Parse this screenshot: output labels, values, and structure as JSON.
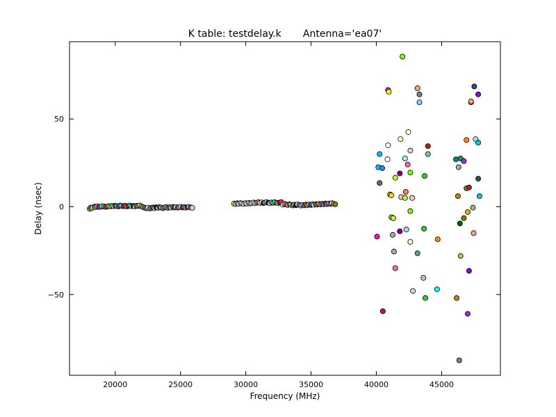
{
  "chart_data": {
    "type": "scatter",
    "title": "K table: testdelay.k       Antenna='ea07'",
    "xlabel": "Frequency (MHz)",
    "ylabel": "Delay (nsec)",
    "xlim": [
      16500,
      49500
    ],
    "ylim": [
      -96,
      94
    ],
    "xticks": [
      {
        "value": 20000,
        "label": "20000"
      },
      {
        "value": 25000,
        "label": "25000"
      },
      {
        "value": 30000,
        "label": "30000"
      },
      {
        "value": 35000,
        "label": "35000"
      },
      {
        "value": 40000,
        "label": "40000"
      },
      {
        "value": 45000,
        "label": "45000"
      }
    ],
    "yticks": [
      {
        "value": 50,
        "label": "50"
      },
      {
        "value": 0,
        "label": "0"
      },
      {
        "value": -50,
        "label": "−50"
      }
    ],
    "grid": false,
    "points": [
      {
        "x": 18050,
        "y": -1.2,
        "color": "#87cefa"
      },
      {
        "x": 18120,
        "y": -0.5,
        "color": "#ff69b4"
      },
      {
        "x": 18200,
        "y": -0.8,
        "color": "#7cfc00"
      },
      {
        "x": 18300,
        "y": -0.3,
        "color": "#ffffe0"
      },
      {
        "x": 18420,
        "y": 0.1,
        "color": "#00bfff"
      },
      {
        "x": 18500,
        "y": -0.2,
        "color": "#9acd32"
      },
      {
        "x": 18620,
        "y": 0.2,
        "color": "#ffa07a"
      },
      {
        "x": 18750,
        "y": -0.1,
        "color": "#ff00ff"
      },
      {
        "x": 18870,
        "y": 0.0,
        "color": "#4682b4"
      },
      {
        "x": 19000,
        "y": 0.3,
        "color": "#ffffff"
      },
      {
        "x": 19120,
        "y": 0.2,
        "color": "#00fa9a"
      },
      {
        "x": 19250,
        "y": -0.1,
        "color": "#ff4500"
      },
      {
        "x": 19380,
        "y": 0.1,
        "color": "#6a5acd"
      },
      {
        "x": 19500,
        "y": 0.4,
        "color": "#c0c0c0"
      },
      {
        "x": 19620,
        "y": 0.2,
        "color": "#ffd700"
      },
      {
        "x": 19750,
        "y": 0.5,
        "color": "#40e0d0"
      },
      {
        "x": 19870,
        "y": 0.3,
        "color": "#adff2f"
      },
      {
        "x": 20000,
        "y": 0.6,
        "color": "#8b4513"
      },
      {
        "x": 20120,
        "y": 0.4,
        "color": "#00ffff"
      },
      {
        "x": 20250,
        "y": 0.2,
        "color": "#ff1493"
      },
      {
        "x": 20380,
        "y": 0.7,
        "color": "#1e90ff"
      },
      {
        "x": 20500,
        "y": 0.5,
        "color": "#ffff00"
      },
      {
        "x": 20620,
        "y": 0.3,
        "color": "#8a2be2"
      },
      {
        "x": 20750,
        "y": 0.6,
        "color": "#2e8b57"
      },
      {
        "x": 20870,
        "y": 0.2,
        "color": "#ff8c00"
      },
      {
        "x": 21000,
        "y": 0.4,
        "color": "#dc143c"
      },
      {
        "x": 21120,
        "y": 0.7,
        "color": "#00ced1"
      },
      {
        "x": 21250,
        "y": 0.3,
        "color": "#98fb98"
      },
      {
        "x": 21380,
        "y": 0.5,
        "color": "#191970"
      },
      {
        "x": 21500,
        "y": 0.2,
        "color": "#f0e68c"
      },
      {
        "x": 21620,
        "y": 0.6,
        "color": "#808080"
      },
      {
        "x": 21750,
        "y": 0.4,
        "color": "#ff6347"
      },
      {
        "x": 21870,
        "y": 0.8,
        "color": "#afeeee"
      },
      {
        "x": 22000,
        "y": 0.3,
        "color": "#32cd32"
      },
      {
        "x": 22150,
        "y": -0.3,
        "color": "#da70d6"
      },
      {
        "x": 22280,
        "y": -0.6,
        "color": "#b8860b"
      },
      {
        "x": 22400,
        "y": -0.9,
        "color": "#5f9ea0"
      },
      {
        "x": 22520,
        "y": -0.5,
        "color": "#f5f5f5"
      },
      {
        "x": 22650,
        "y": -1.0,
        "color": "#ff7f50"
      },
      {
        "x": 22780,
        "y": -0.7,
        "color": "#6495ed"
      },
      {
        "x": 22900,
        "y": -0.4,
        "color": "#228b22"
      },
      {
        "x": 23020,
        "y": -0.8,
        "color": "#ffb6c1"
      },
      {
        "x": 23150,
        "y": -0.3,
        "color": "#000080"
      },
      {
        "x": 23280,
        "y": -0.6,
        "color": "#eee8aa"
      },
      {
        "x": 23400,
        "y": -0.2,
        "color": "#b22222"
      },
      {
        "x": 23520,
        "y": -0.5,
        "color": "#7fffd4"
      },
      {
        "x": 23650,
        "y": -0.8,
        "color": "#ba55d3"
      },
      {
        "x": 23780,
        "y": -0.4,
        "color": "#daa520"
      },
      {
        "x": 23900,
        "y": -0.2,
        "color": "#66cdaa"
      },
      {
        "x": 24020,
        "y": -0.6,
        "color": "#fa8072"
      },
      {
        "x": 24150,
        "y": -0.3,
        "color": "#008b8b"
      },
      {
        "x": 24280,
        "y": -0.5,
        "color": "#fffacd"
      },
      {
        "x": 24400,
        "y": -0.1,
        "color": "#9370db"
      },
      {
        "x": 24520,
        "y": -0.4,
        "color": "#556b2f"
      },
      {
        "x": 24650,
        "y": -0.2,
        "color": "#ffdab9"
      },
      {
        "x": 24780,
        "y": -0.5,
        "color": "#4169e1"
      },
      {
        "x": 24900,
        "y": -0.3,
        "color": "#bdb76b"
      },
      {
        "x": 25020,
        "y": -0.1,
        "color": "#e0ffff"
      },
      {
        "x": 25150,
        "y": -0.4,
        "color": "#c71585"
      },
      {
        "x": 25280,
        "y": -0.2,
        "color": "#20b2aa"
      },
      {
        "x": 25400,
        "y": -0.5,
        "color": "#f4a460"
      },
      {
        "x": 25520,
        "y": -0.3,
        "color": "#483d8b"
      },
      {
        "x": 25650,
        "y": -0.1,
        "color": "#90ee90"
      },
      {
        "x": 25780,
        "y": -0.4,
        "color": "#ff00ff"
      },
      {
        "x": 25900,
        "y": -0.6,
        "color": "#d3d3d3"
      },
      {
        "x": 29100,
        "y": 1.8,
        "color": "#ffff00"
      },
      {
        "x": 29220,
        "y": 1.5,
        "color": "#d3d3d3"
      },
      {
        "x": 29350,
        "y": 2.0,
        "color": "#ff69b4"
      },
      {
        "x": 29470,
        "y": 1.7,
        "color": "#ffffff"
      },
      {
        "x": 29600,
        "y": 2.1,
        "color": "#87cefa"
      },
      {
        "x": 29720,
        "y": 1.9,
        "color": "#ffe4b5"
      },
      {
        "x": 29850,
        "y": 1.6,
        "color": "#fffacd"
      },
      {
        "x": 29970,
        "y": 2.0,
        "color": "#b0e0e6"
      },
      {
        "x": 30100,
        "y": 1.8,
        "color": "#ffffff"
      },
      {
        "x": 30220,
        "y": 2.2,
        "color": "#7fffd4"
      },
      {
        "x": 30350,
        "y": 1.9,
        "color": "#dda0dd"
      },
      {
        "x": 30470,
        "y": 2.1,
        "color": "#f0fff0"
      },
      {
        "x": 30600,
        "y": 2.4,
        "color": "#ffdead"
      },
      {
        "x": 30720,
        "y": 2.0,
        "color": "#e6e6fa"
      },
      {
        "x": 30850,
        "y": 2.3,
        "color": "#a9a9a9"
      },
      {
        "x": 30970,
        "y": 2.6,
        "color": "#ff7f50"
      },
      {
        "x": 31100,
        "y": 2.2,
        "color": "#e0ffff"
      },
      {
        "x": 31220,
        "y": 2.5,
        "color": "#fafad2"
      },
      {
        "x": 31350,
        "y": 2.1,
        "color": "#8b008b"
      },
      {
        "x": 31470,
        "y": 2.4,
        "color": "#00ff7f"
      },
      {
        "x": 31600,
        "y": 2.7,
        "color": "#ffb6c1"
      },
      {
        "x": 31720,
        "y": 2.3,
        "color": "#4b0082"
      },
      {
        "x": 31850,
        "y": 2.0,
        "color": "#fff0f5"
      },
      {
        "x": 31970,
        "y": 2.5,
        "color": "#66cdaa"
      },
      {
        "x": 32100,
        "y": 2.2,
        "color": "#8fbc8f"
      },
      {
        "x": 32220,
        "y": 2.6,
        "color": "#00ffff"
      },
      {
        "x": 32350,
        "y": 2.3,
        "color": "#ff6347"
      },
      {
        "x": 32470,
        "y": 2.0,
        "color": "#7cfc00"
      },
      {
        "x": 32600,
        "y": 2.4,
        "color": "#2f4f4f"
      },
      {
        "x": 32720,
        "y": 2.7,
        "color": "#ff1493"
      },
      {
        "x": 32850,
        "y": 1.2,
        "color": "#ffffff"
      },
      {
        "x": 32970,
        "y": 1.6,
        "color": "#ffd700"
      },
      {
        "x": 33100,
        "y": 1.3,
        "color": "#9370db"
      },
      {
        "x": 33220,
        "y": 1.0,
        "color": "#ffa07a"
      },
      {
        "x": 33350,
        "y": 1.4,
        "color": "#708090"
      },
      {
        "x": 33470,
        "y": 1.1,
        "color": "#98fb98"
      },
      {
        "x": 33600,
        "y": 0.8,
        "color": "#cd5c5c"
      },
      {
        "x": 33720,
        "y": 1.2,
        "color": "#e9967a"
      },
      {
        "x": 33850,
        "y": 0.9,
        "color": "#00008b"
      },
      {
        "x": 33970,
        "y": 1.3,
        "color": "#f5deb3"
      },
      {
        "x": 34100,
        "y": 1.0,
        "color": "#3cb371"
      },
      {
        "x": 34220,
        "y": 0.7,
        "color": "#ee82ee"
      },
      {
        "x": 34350,
        "y": 1.1,
        "color": "#f0e68c"
      },
      {
        "x": 34470,
        "y": 0.8,
        "color": "#4682b4"
      },
      {
        "x": 34600,
        "y": 1.2,
        "color": "#ff4500"
      },
      {
        "x": 34720,
        "y": 0.9,
        "color": "#bc8f8f"
      },
      {
        "x": 34850,
        "y": 1.3,
        "color": "#adff2f"
      },
      {
        "x": 34970,
        "y": 1.0,
        "color": "#8a2be2"
      },
      {
        "x": 35100,
        "y": 1.4,
        "color": "#00ced1"
      },
      {
        "x": 35220,
        "y": 1.1,
        "color": "#ffe4e1"
      },
      {
        "x": 35350,
        "y": 1.5,
        "color": "#d2691e"
      },
      {
        "x": 35470,
        "y": 1.2,
        "color": "#6b8e23"
      },
      {
        "x": 35600,
        "y": 1.6,
        "color": "#b0c4de"
      },
      {
        "x": 35720,
        "y": 1.3,
        "color": "#ff69b4"
      },
      {
        "x": 35850,
        "y": 1.7,
        "color": "#1e90ff"
      },
      {
        "x": 35970,
        "y": 1.4,
        "color": "#9acd32"
      },
      {
        "x": 36100,
        "y": 1.8,
        "color": "#c71585"
      },
      {
        "x": 36220,
        "y": 1.5,
        "color": "#5f9ea0"
      },
      {
        "x": 36350,
        "y": 1.9,
        "color": "#deb887"
      },
      {
        "x": 36470,
        "y": 1.6,
        "color": "#7b68ee"
      },
      {
        "x": 36600,
        "y": 2.0,
        "color": "#ffffe0"
      },
      {
        "x": 36720,
        "y": 1.7,
        "color": "#daa520"
      },
      {
        "x": 36850,
        "y": 1.4,
        "color": "#808000"
      },
      {
        "x": 42000,
        "y": 85.5,
        "color": "#7cfc00"
      },
      {
        "x": 40900,
        "y": 66.5,
        "color": "#ff00ff"
      },
      {
        "x": 40950,
        "y": 65.5,
        "color": "#ffff00"
      },
      {
        "x": 43150,
        "y": 67.5,
        "color": "#ffa07a"
      },
      {
        "x": 43300,
        "y": 64.0,
        "color": "#708090"
      },
      {
        "x": 43300,
        "y": 59.5,
        "color": "#87cefa"
      },
      {
        "x": 47500,
        "y": 68.5,
        "color": "#483d8b"
      },
      {
        "x": 47800,
        "y": 64.0,
        "color": "#9400d3"
      },
      {
        "x": 47250,
        "y": 59.5,
        "color": "#ff6347"
      },
      {
        "x": 47250,
        "y": 60.0,
        "color": "#ffa07a"
      },
      {
        "x": 42450,
        "y": 42.5,
        "color": "#ffffe0"
      },
      {
        "x": 41850,
        "y": 38.5,
        "color": "#fffacd"
      },
      {
        "x": 40900,
        "y": 35.0,
        "color": "#ffffff"
      },
      {
        "x": 42600,
        "y": 32.0,
        "color": "#d3d3d3"
      },
      {
        "x": 40250,
        "y": 30.0,
        "color": "#00bfff"
      },
      {
        "x": 43950,
        "y": 34.5,
        "color": "#b22222"
      },
      {
        "x": 43950,
        "y": 30.0,
        "color": "#66cdaa"
      },
      {
        "x": 40850,
        "y": 27.0,
        "color": "#ffffff"
      },
      {
        "x": 42200,
        "y": 27.5,
        "color": "#afeeee"
      },
      {
        "x": 42400,
        "y": 24.0,
        "color": "#ff69b4"
      },
      {
        "x": 40150,
        "y": 22.5,
        "color": "#00bfff"
      },
      {
        "x": 40450,
        "y": 22.0,
        "color": "#1e90ff"
      },
      {
        "x": 41800,
        "y": 19.0,
        "color": "#8b008b"
      },
      {
        "x": 42600,
        "y": 19.5,
        "color": "#7cfc00"
      },
      {
        "x": 43700,
        "y": 17.5,
        "color": "#32cd32"
      },
      {
        "x": 41450,
        "y": 16.5,
        "color": "#adff2f"
      },
      {
        "x": 40250,
        "y": 13.5,
        "color": "#696969"
      },
      {
        "x": 42250,
        "y": 8.5,
        "color": "#ff7f50"
      },
      {
        "x": 41050,
        "y": 7.0,
        "color": "#daa520"
      },
      {
        "x": 41150,
        "y": 6.5,
        "color": "#ffd700"
      },
      {
        "x": 41900,
        "y": 5.5,
        "color": "#ffb6c1"
      },
      {
        "x": 42200,
        "y": 5.0,
        "color": "#adff2f"
      },
      {
        "x": 42750,
        "y": 5.0,
        "color": "#ffc0cb"
      },
      {
        "x": 46100,
        "y": 27.0,
        "color": "#008b8b"
      },
      {
        "x": 46450,
        "y": 27.5,
        "color": "#2e8b57"
      },
      {
        "x": 46700,
        "y": 26.0,
        "color": "#9932cc"
      },
      {
        "x": 46300,
        "y": 22.5,
        "color": "#a9a9a9"
      },
      {
        "x": 46900,
        "y": 38.0,
        "color": "#ff8c00"
      },
      {
        "x": 47600,
        "y": 38.5,
        "color": "#b0e0e6"
      },
      {
        "x": 47800,
        "y": 36.5,
        "color": "#00ced1"
      },
      {
        "x": 47800,
        "y": 16.0,
        "color": "#2f4f4f"
      },
      {
        "x": 46900,
        "y": 10.5,
        "color": "#6b8e23"
      },
      {
        "x": 47100,
        "y": 11.0,
        "color": "#b22222"
      },
      {
        "x": 46250,
        "y": 6.0,
        "color": "#b8860b"
      },
      {
        "x": 47900,
        "y": 6.0,
        "color": "#00ced1"
      },
      {
        "x": 47400,
        "y": -0.5,
        "color": "#8fbc8f"
      },
      {
        "x": 47000,
        "y": -3.0,
        "color": "#ffa500"
      },
      {
        "x": 46700,
        "y": -6.5,
        "color": "#808000"
      },
      {
        "x": 46400,
        "y": -9.5,
        "color": "#006400"
      },
      {
        "x": 41150,
        "y": -6.0,
        "color": "#9acd32"
      },
      {
        "x": 41300,
        "y": -6.5,
        "color": "#adff2f"
      },
      {
        "x": 42600,
        "y": -2.5,
        "color": "#7cfc00"
      },
      {
        "x": 42300,
        "y": -13.0,
        "color": "#add8e6"
      },
      {
        "x": 43650,
        "y": -12.5,
        "color": "#32cd32"
      },
      {
        "x": 41800,
        "y": -14.0,
        "color": "#8b008b"
      },
      {
        "x": 41250,
        "y": -16.0,
        "color": "#a9a9a9"
      },
      {
        "x": 40050,
        "y": -17.0,
        "color": "#ff1493"
      },
      {
        "x": 42600,
        "y": -20.0,
        "color": "#fffacd"
      },
      {
        "x": 44700,
        "y": -18.5,
        "color": "#ff8c00"
      },
      {
        "x": 47450,
        "y": -15.0,
        "color": "#ffa07a"
      },
      {
        "x": 41350,
        "y": -25.5,
        "color": "#a9a9a9"
      },
      {
        "x": 43150,
        "y": -26.5,
        "color": "#5f9ea0"
      },
      {
        "x": 46450,
        "y": -28.0,
        "color": "#bdb76b"
      },
      {
        "x": 41450,
        "y": -35.0,
        "color": "#ff69b4"
      },
      {
        "x": 47100,
        "y": -36.5,
        "color": "#9400d3"
      },
      {
        "x": 43600,
        "y": -40.5,
        "color": "#b0c4de"
      },
      {
        "x": 42800,
        "y": -48.0,
        "color": "#d3d3d3"
      },
      {
        "x": 44650,
        "y": -47.0,
        "color": "#00ffff"
      },
      {
        "x": 43750,
        "y": -52.0,
        "color": "#32cd32"
      },
      {
        "x": 46150,
        "y": -52.0,
        "color": "#b8860b"
      },
      {
        "x": 40500,
        "y": -59.5,
        "color": "#b22222"
      },
      {
        "x": 47000,
        "y": -61.0,
        "color": "#9932cc"
      },
      {
        "x": 46350,
        "y": -87.5,
        "color": "#808080"
      }
    ]
  }
}
